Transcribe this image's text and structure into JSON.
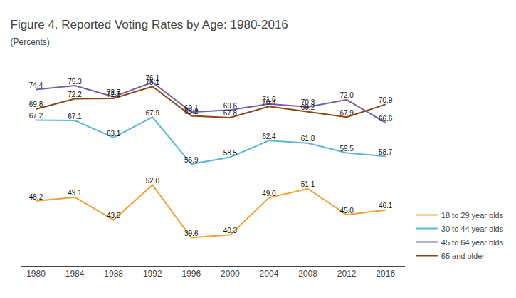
{
  "chart_data": {
    "type": "line",
    "title": "Figure 4. Reported Voting Rates by Age: 1980-2016",
    "subtitle": "(Percents)",
    "x": [
      1980,
      1984,
      1988,
      1992,
      1996,
      2000,
      2004,
      2008,
      2012,
      2016
    ],
    "xlim": [
      1978.5,
      2018
    ],
    "xticks": [
      1980,
      1984,
      1988,
      1992,
      1996,
      2000,
      2004,
      2008,
      2012,
      2016
    ],
    "ylim": [
      33,
      82
    ],
    "tick_labels": "x",
    "grid": false,
    "legend": "lower right",
    "data_labels": true,
    "series": [
      {
        "name": "18 to 29 year olds",
        "color": "#F0A030",
        "values": [
          48.2,
          49.1,
          43.8,
          52.0,
          39.6,
          40.3,
          49.0,
          51.1,
          45.0,
          46.1
        ],
        "value_labels": [
          "48.2",
          "49.1",
          "43.8",
          "52.0",
          "39.6",
          "40.3",
          "49.0",
          "51.1",
          "45.0",
          "46.1"
        ]
      },
      {
        "name": "30 to 44 year olds",
        "color": "#5BB8D4",
        "values": [
          67.2,
          67.1,
          63.1,
          67.9,
          56.9,
          58.5,
          62.4,
          61.8,
          59.5,
          58.7
        ],
        "value_labels": [
          "67.2",
          "67.1",
          "63.1",
          "67.9",
          "56.9",
          "58.5",
          "62.4",
          "61.8",
          "59.5",
          "58.7"
        ]
      },
      {
        "name": "45 to 64 year olds",
        "color": "#7060A8",
        "values": [
          74.4,
          75.3,
          72.7,
          76.1,
          69.1,
          69.6,
          71.0,
          70.3,
          72.0,
          66.6
        ],
        "value_labels": [
          "74.4",
          "75.3",
          "72.7",
          "76.1",
          "69.1",
          "69.6",
          "71.0",
          "70.3",
          "72.0",
          "66.6"
        ]
      },
      {
        "name": "65 and older",
        "color": "#8B4513",
        "values": [
          69.8,
          72.2,
          72.3,
          75.1,
          68.2,
          67.8,
          70.4,
          69.2,
          67.9,
          70.9
        ],
        "value_labels": [
          "69.8",
          "72.2",
          "72.3",
          "75.1",
          "68.2",
          "67.8",
          "70.4",
          "69.2",
          "67.9",
          "70.9"
        ]
      }
    ]
  }
}
